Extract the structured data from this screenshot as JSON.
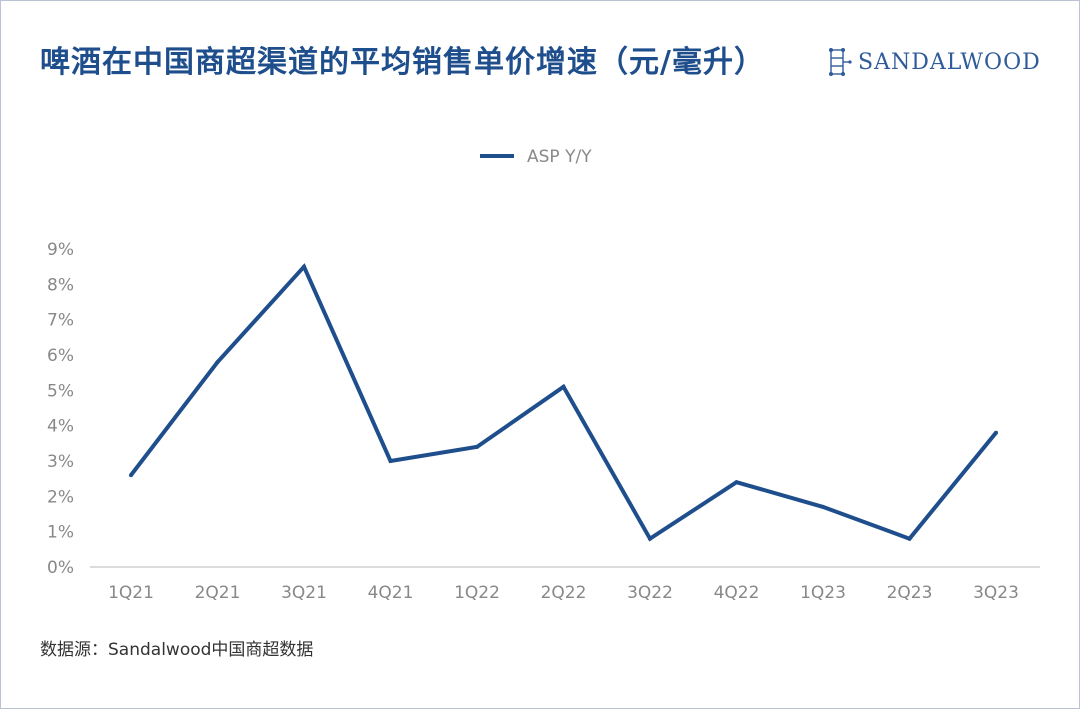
{
  "title": "啤酒在中国商超渠道的平均销售单价增速（元/毫升）",
  "brand": {
    "name": "SANDALWOOD",
    "icon": "sandalwood-logo-icon"
  },
  "source": "数据源：Sandalwood中国商超数据",
  "colors": {
    "line": "#1f4e8c",
    "title": "#1f4e8c",
    "axis": "#cfcfcf",
    "tick": "#888888"
  },
  "chart_data": {
    "type": "line",
    "categories": [
      "1Q21",
      "2Q21",
      "3Q21",
      "4Q21",
      "1Q22",
      "2Q22",
      "3Q22",
      "4Q22",
      "1Q23",
      "2Q23",
      "3Q23"
    ],
    "series": [
      {
        "name": "ASP Y/Y",
        "values": [
          2.6,
          5.8,
          8.5,
          3.0,
          3.4,
          5.1,
          0.8,
          2.4,
          1.7,
          0.8,
          3.8
        ]
      }
    ],
    "yticks": [
      "0%",
      "1%",
      "2%",
      "3%",
      "4%",
      "5%",
      "6%",
      "7%",
      "8%",
      "9%"
    ],
    "ylim": [
      0,
      9
    ],
    "grid": false,
    "legend": "top-center"
  }
}
